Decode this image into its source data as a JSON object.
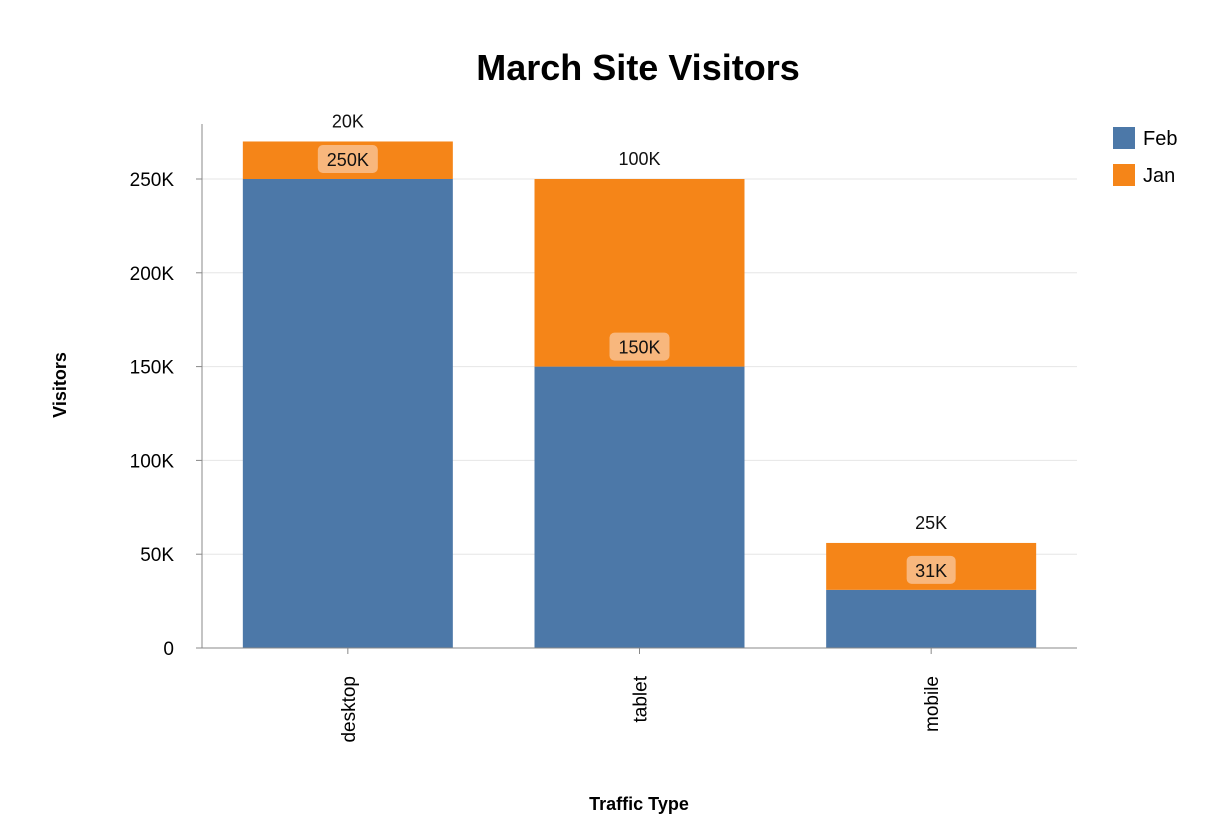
{
  "chart_data": {
    "type": "bar",
    "stacked": true,
    "title": "March Site Visitors",
    "xlabel": "Traffic Type",
    "ylabel": "Visitors",
    "categories": [
      "desktop",
      "tablet",
      "mobile"
    ],
    "ylim": [
      0,
      280000
    ],
    "yticks": [
      0,
      50000,
      100000,
      150000,
      200000,
      250000
    ],
    "ytick_labels": [
      "0",
      "50K",
      "100K",
      "150K",
      "200K",
      "250K"
    ],
    "grid": true,
    "legend_position": "top-right",
    "series": [
      {
        "name": "Feb",
        "color": "#4c78a8",
        "values": [
          250000,
          150000,
          31000
        ]
      },
      {
        "name": "Jan",
        "color": "#f58518",
        "values": [
          20000,
          100000,
          25000
        ]
      }
    ],
    "segment_labels": [
      "250K",
      "150K",
      "31K"
    ],
    "top_labels": [
      "20K",
      "100K",
      "25K"
    ]
  }
}
